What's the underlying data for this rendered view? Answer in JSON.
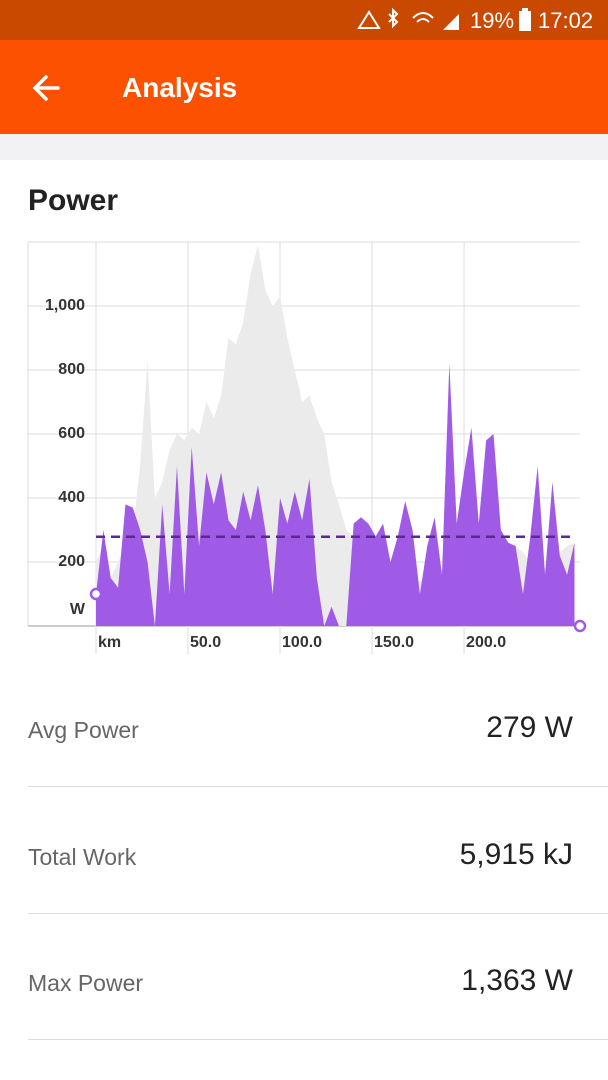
{
  "status_bar": {
    "battery": "19%",
    "time": "17:02"
  },
  "app_bar": {
    "title": "Analysis"
  },
  "section_title": "Power",
  "chart_data": {
    "type": "area",
    "x": [
      0,
      4,
      8,
      12,
      16,
      20,
      24,
      28,
      32,
      36,
      40,
      44,
      48,
      52,
      56,
      60,
      64,
      68,
      72,
      76,
      80,
      84,
      88,
      92,
      96,
      100,
      104,
      108,
      112,
      116,
      120,
      124,
      128,
      132,
      136,
      140,
      144,
      148,
      152,
      156,
      160,
      164,
      168,
      172,
      176,
      180,
      184,
      188,
      192,
      196,
      200,
      204,
      208,
      212,
      216,
      220,
      224,
      228,
      232,
      236,
      240,
      244,
      248,
      252,
      256,
      260
    ],
    "series": [
      {
        "color": "#ebebeb",
        "values": [
          200,
          250,
          150,
          200,
          250,
          300,
          500,
          830,
          400,
          450,
          550,
          600,
          580,
          620,
          600,
          700,
          650,
          720,
          900,
          880,
          950,
          1100,
          1190,
          1050,
          1000,
          1030,
          900,
          800,
          700,
          720,
          650,
          600,
          450,
          380,
          300,
          280,
          250,
          230,
          220,
          210,
          200,
          180,
          170,
          150,
          140,
          150,
          160,
          180,
          200,
          240,
          260,
          280,
          250,
          220,
          200,
          210,
          230,
          250,
          230,
          200,
          190,
          180,
          200,
          230,
          250,
          260
        ]
      },
      {
        "color": "#a05be6",
        "values": [
          100,
          300,
          150,
          120,
          380,
          370,
          300,
          200,
          0,
          380,
          100,
          500,
          100,
          560,
          250,
          480,
          380,
          480,
          330,
          300,
          420,
          330,
          440,
          300,
          100,
          400,
          320,
          420,
          330,
          460,
          150,
          0,
          60,
          0,
          0,
          320,
          340,
          320,
          280,
          320,
          200,
          280,
          390,
          300,
          100,
          250,
          340,
          160,
          820,
          320,
          480,
          620,
          320,
          580,
          600,
          300,
          260,
          250,
          100,
          280,
          500,
          160,
          450,
          220,
          160,
          260
        ]
      }
    ],
    "average": 279,
    "average_color": "#5b2a91",
    "xlim": [
      0,
      263
    ],
    "xticks": [
      {
        "value": 0,
        "label": "km"
      },
      {
        "value": 50,
        "label": "50.0"
      },
      {
        "value": 100,
        "label": "100.0"
      },
      {
        "value": 150,
        "label": "150.0"
      },
      {
        "value": 200,
        "label": "200.0"
      }
    ],
    "ylim": [
      0,
      1200
    ],
    "yticks": [
      {
        "value": 0,
        "label": "W"
      },
      200,
      400,
      600,
      800,
      {
        "value": 1000,
        "label": "1,000"
      }
    ],
    "grid": true
  },
  "stats": [
    {
      "label": "Avg Power",
      "value": "279 W"
    },
    {
      "label": "Total Work",
      "value": "5,915 kJ"
    },
    {
      "label": "Max Power",
      "value": "1,363 W"
    }
  ]
}
